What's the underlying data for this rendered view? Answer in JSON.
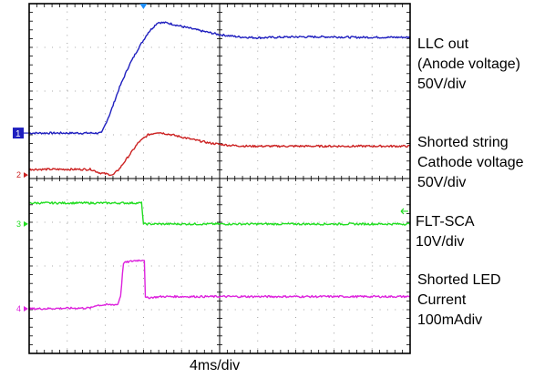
{
  "chart_data": {
    "type": "line",
    "title": "",
    "xlabel": "4ms/div",
    "ylabel": "",
    "grid": true,
    "x_unit": "ms",
    "xlim": [
      0,
      40
    ],
    "divisions": {
      "x": 10,
      "y": 8
    },
    "trigger_marker_x_ms": 12,
    "series": [
      {
        "name": "LLC out (Anode voltage)",
        "color": "#1f1fbf",
        "scale": "50V/div",
        "channel_marker": "1",
        "ground_div": 5.04,
        "ground_level_ms": 0,
        "points": [
          [
            0,
            0
          ],
          [
            7.6,
            0
          ],
          [
            8.5,
            0.45
          ],
          [
            9.5,
            1.05
          ],
          [
            10.5,
            1.55
          ],
          [
            11.5,
            1.95
          ],
          [
            12.5,
            2.3
          ],
          [
            13.5,
            2.53
          ],
          [
            14.5,
            2.52
          ],
          [
            16,
            2.44
          ],
          [
            18,
            2.34
          ],
          [
            20,
            2.25
          ],
          [
            22,
            2.2
          ],
          [
            24,
            2.18
          ],
          [
            26,
            2.19
          ],
          [
            28,
            2.2
          ],
          [
            30,
            2.2
          ],
          [
            32,
            2.2
          ],
          [
            34,
            2.19
          ],
          [
            36,
            2.19
          ],
          [
            38,
            2.19
          ],
          [
            40,
            2.19
          ]
        ]
      },
      {
        "name": "Shorted string Cathode voltage",
        "color": "#cc2222",
        "scale": "50V/div",
        "channel_marker": "2",
        "ground_div": 4.08,
        "points": [
          [
            0,
            0.13
          ],
          [
            6.5,
            0.13
          ],
          [
            7.4,
            0.05
          ],
          [
            8.8,
            0
          ],
          [
            9.5,
            0.15
          ],
          [
            10.5,
            0.45
          ],
          [
            11.5,
            0.75
          ],
          [
            12.5,
            0.92
          ],
          [
            13.5,
            0.98
          ],
          [
            15,
            0.92
          ],
          [
            17,
            0.82
          ],
          [
            19,
            0.73
          ],
          [
            21,
            0.68
          ],
          [
            23,
            0.66
          ],
          [
            26,
            0.66
          ],
          [
            30,
            0.66
          ],
          [
            34,
            0.66
          ],
          [
            40,
            0.66
          ]
        ]
      },
      {
        "name": "FLT-SCA",
        "color": "#22dd22",
        "scale": "10V/div",
        "channel_marker": "3",
        "ground_div": 2.96,
        "points": [
          [
            0,
            0.48
          ],
          [
            11.85,
            0.48
          ],
          [
            11.95,
            0
          ],
          [
            40,
            0
          ]
        ]
      },
      {
        "name": "Shorted LED Current",
        "color": "#dd22dd",
        "scale": "100mAdiv",
        "channel_marker": "4",
        "ground_div": 1.02,
        "points": [
          [
            0,
            0
          ],
          [
            6.5,
            0.02
          ],
          [
            7,
            0.08
          ],
          [
            9.3,
            0.1
          ],
          [
            9.6,
            0.3
          ],
          [
            9.9,
            1.05
          ],
          [
            11,
            1.1
          ],
          [
            12.1,
            1.12
          ],
          [
            12.2,
            0.25
          ],
          [
            14,
            0.28
          ],
          [
            20,
            0.28
          ],
          [
            30,
            0.28
          ],
          [
            40,
            0.28
          ]
        ]
      }
    ]
  },
  "labels": {
    "llc_1": "LLC out",
    "llc_2": "(Anode voltage)",
    "llc_3": "50V/div",
    "cath_1": "Shorted string",
    "cath_2": "Cathode voltage",
    "cath_3": "50V/div",
    "flt_1": "FLT-SCA",
    "flt_2": "10V/div",
    "led_1": "Shorted LED",
    "led_2": "Current",
    "led_3": "100mAdiv"
  },
  "colors": {
    "frame": "#000000",
    "grid": "#888888",
    "trigger_marker": "#1e90ff",
    "channel1_marker_bg": "#1f1fbf"
  }
}
